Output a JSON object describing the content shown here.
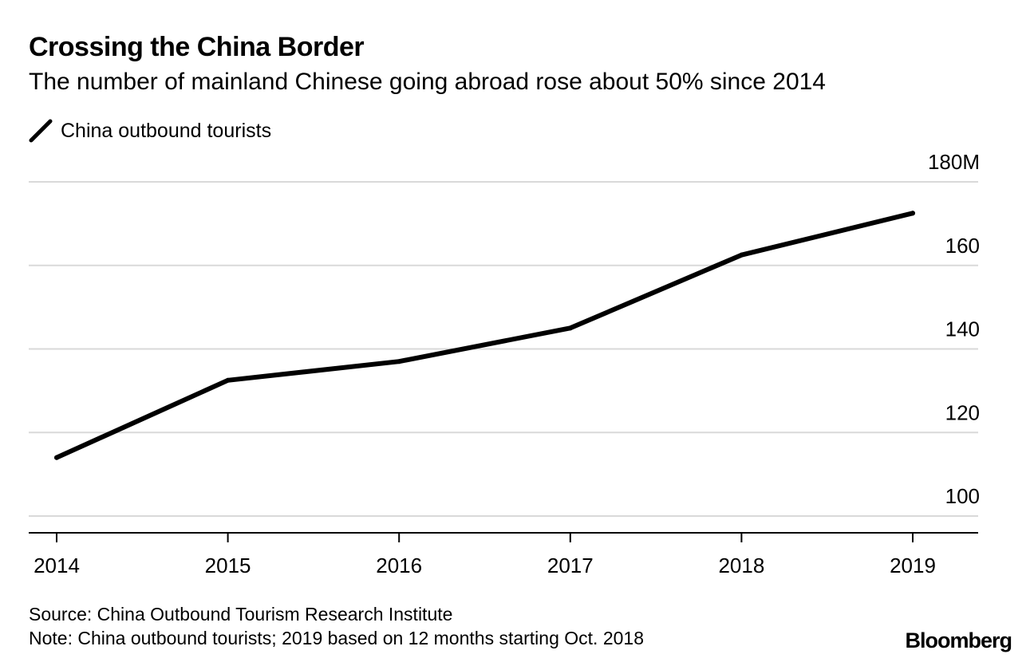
{
  "chart_data": {
    "type": "line",
    "title": "Crossing the China Border",
    "subtitle": "The number of mainland Chinese going abroad rose about 50% since 2014",
    "categories": [
      "2014",
      "2015",
      "2016",
      "2017",
      "2018",
      "2019"
    ],
    "series": [
      {
        "name": "China outbound tourists",
        "values": [
          114,
          132.5,
          137,
          145,
          162.5,
          172.5
        ],
        "color": "#000000"
      }
    ],
    "xlabel": "",
    "ylabel": "",
    "ylim": [
      96,
      180
    ],
    "yticks": [
      100,
      120,
      140,
      160,
      180
    ],
    "ytick_labels": [
      "100",
      "120",
      "140",
      "160",
      "180M"
    ],
    "grid": true,
    "legend_position": "top-left",
    "y_axis_side": "right"
  },
  "footer": {
    "source": "Source: China Outbound Tourism Research Institute",
    "note": "Note: China outbound tourists; 2019 based on 12 months starting Oct. 2018"
  },
  "brand": "Bloomberg",
  "colors": {
    "line": "#000000",
    "grid": "#d9d9d9",
    "axis": "#000000",
    "text": "#000000",
    "background": "#ffffff"
  }
}
